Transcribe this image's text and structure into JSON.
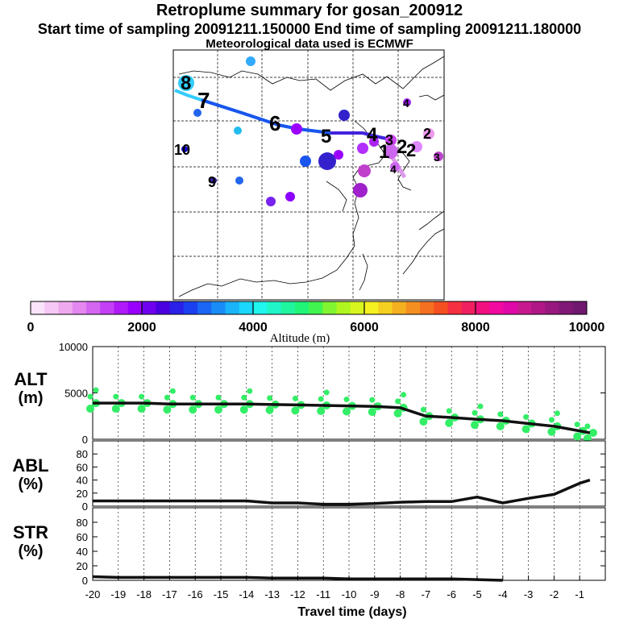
{
  "header": {
    "title": "Retroplume summary for gosan_200912",
    "sampling": "Start time of sampling 20091211.150000     End time of sampling 20091211.180000",
    "meteo": "Meteorological data used is ECMWF"
  },
  "colorbar": {
    "ticks": [
      "0",
      "2000",
      "4000",
      "6000",
      "8000",
      "10000"
    ],
    "label": "Altitude (m)"
  },
  "map_labels": [
    {
      "text": "8",
      "color": "#33ccff"
    },
    {
      "text": "7",
      "color": "#2266ee"
    },
    {
      "text": "6",
      "color": "#1a3fdd"
    },
    {
      "text": "5",
      "color": "#2a30d8"
    },
    {
      "text": "4",
      "color": "#9b00ff"
    },
    {
      "text": "3",
      "color": "#b22fff"
    },
    {
      "text": "2",
      "color": "#dd88ff"
    },
    {
      "text": "1",
      "color": "#cc66ee"
    },
    {
      "text": "10",
      "color": "#1100cc"
    },
    {
      "text": "9",
      "color": "#3322aa"
    }
  ],
  "chart_data": [
    {
      "type": "line",
      "panel": "ALT",
      "label_line1": "ALT",
      "label_line2": "(m)",
      "ylim": [
        0,
        10000
      ],
      "yticks": [
        "10000",
        "5000",
        "0"
      ],
      "x": [
        -20,
        -19,
        -18,
        -17,
        -16,
        -15,
        -14,
        -13,
        -12,
        -11,
        -10,
        -9,
        -8,
        -7,
        -6,
        -5,
        -4,
        -3,
        -2,
        -1,
        -0.6
      ],
      "values": [
        3900,
        3900,
        3900,
        3800,
        3800,
        3800,
        3800,
        3750,
        3700,
        3650,
        3600,
        3550,
        3400,
        2500,
        2350,
        2150,
        2000,
        1700,
        1400,
        900,
        700
      ]
    },
    {
      "type": "line",
      "panel": "ABL",
      "label_line1": "ABL",
      "label_line2": "(%)",
      "ylim": [
        0,
        100
      ],
      "yticks": [
        "80",
        "60",
        "40",
        "20",
        "0"
      ],
      "x": [
        -20,
        -19,
        -18,
        -17,
        -16,
        -15,
        -14,
        -13,
        -12,
        -11,
        -10,
        -9,
        -8,
        -7,
        -6,
        -5,
        -4,
        -3,
        -2,
        -1,
        -0.6
      ],
      "values": [
        8,
        8,
        8,
        8,
        8,
        8,
        8,
        5,
        5,
        3,
        3,
        4,
        6,
        7,
        7,
        14,
        5,
        12,
        18,
        35,
        40
      ]
    },
    {
      "type": "line",
      "panel": "STR",
      "label_line1": "STR",
      "label_line2": "(%)",
      "ylim": [
        0,
        100
      ],
      "yticks": [
        "80",
        "60",
        "40",
        "20",
        "0"
      ],
      "x": [
        -20,
        -19,
        -18,
        -17,
        -16,
        -15,
        -14,
        -13,
        -12,
        -11,
        -10,
        -9,
        -8,
        -7,
        -6,
        -5,
        -4
      ],
      "values": [
        5,
        4,
        4,
        4,
        4,
        4,
        4,
        3,
        3,
        3,
        2,
        2,
        2,
        2,
        2,
        1,
        0
      ]
    }
  ],
  "xaxis": {
    "ticks": [
      "-20",
      "-19",
      "-18",
      "-17",
      "-16",
      "-15",
      "-14",
      "-13",
      "-12",
      "-11",
      "-10",
      "-9",
      "-8",
      "-7",
      "-6",
      "-5",
      "-4",
      "-3",
      "-2",
      "-1"
    ],
    "label": "Travel time (days)"
  }
}
